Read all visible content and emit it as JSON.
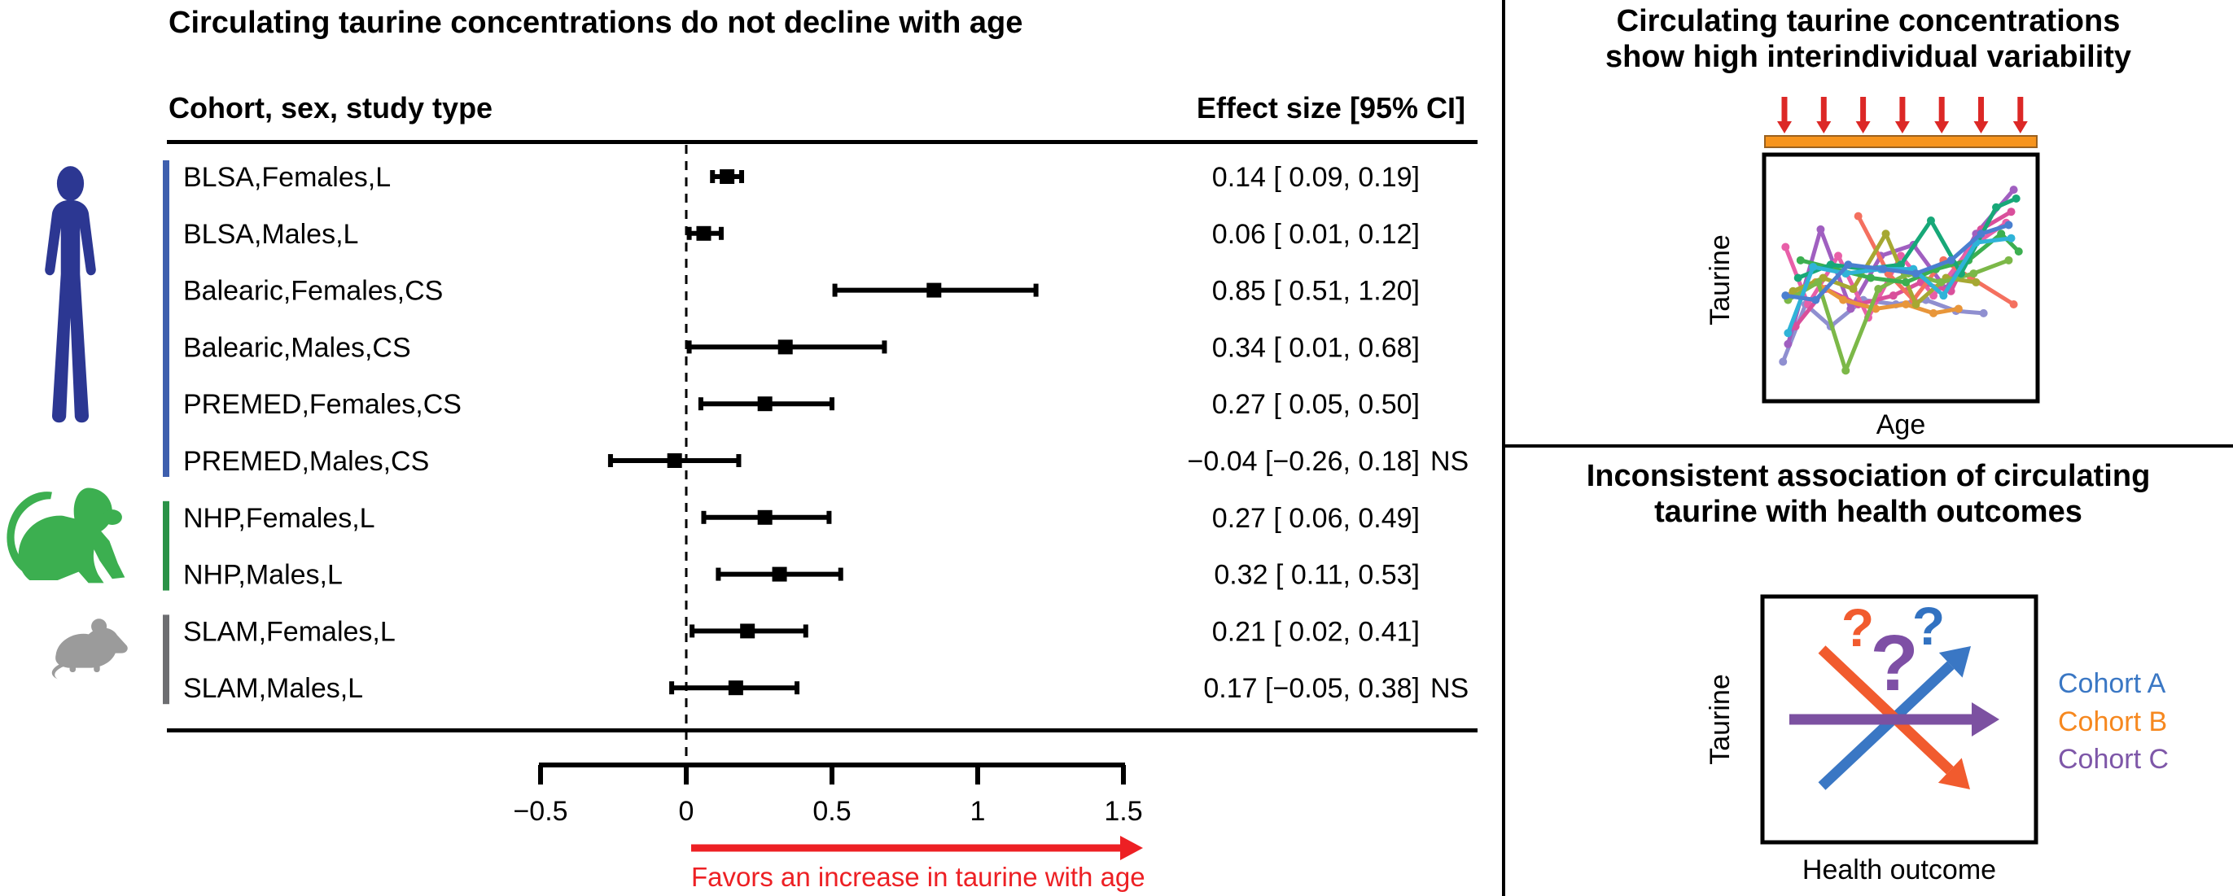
{
  "left_panel": {
    "title": "Circulating taurine concentrations do not decline with age",
    "col_header_left": "Cohort, sex, study type",
    "col_header_right": "Effect size [95% CI]"
  },
  "right_top": {
    "title": "Circulating taurine concentrations\nshow high interindividual variability",
    "xlabel": "Age",
    "ylabel": "Taurine"
  },
  "right_bottom": {
    "title": "Inconsistent association of circulating\ntaurine with health outcomes",
    "xlabel": "Health outcome",
    "ylabel": "Taurine"
  },
  "colors": {
    "red_accent": "#ed2024",
    "orange_bar": "#f7941d",
    "mini_arrow_red": "#dc2826",
    "black": "#000000"
  },
  "chart_data": [
    {
      "type": "forest",
      "title": "Circulating taurine concentrations do not decline with age",
      "columns": [
        "Cohort, sex, study type",
        "Effect size [95% CI]"
      ],
      "xlim": [
        -0.5,
        1.5
      ],
      "x_ticks": [
        -0.5,
        0,
        0.5,
        1,
        1.5
      ],
      "x_tick_labels": [
        "−0.5",
        "0",
        "0.5",
        "1",
        "1.5"
      ],
      "zero_line": 0,
      "note": "Favors an increase in taurine with age",
      "note_color": "#ed2024",
      "rows": [
        {
          "label": "BLSA,Females,L",
          "effect": 0.14,
          "ci_low": 0.09,
          "ci_high": 0.19,
          "text": "0.14 [ 0.09, 0.19]",
          "suffix": ""
        },
        {
          "label": "BLSA,Males,L",
          "effect": 0.06,
          "ci_low": 0.01,
          "ci_high": 0.12,
          "text": "0.06 [ 0.01, 0.12]",
          "suffix": ""
        },
        {
          "label": "Balearic,Females,CS",
          "effect": 0.85,
          "ci_low": 0.51,
          "ci_high": 1.2,
          "text": "0.85 [ 0.51, 1.20]",
          "suffix": ""
        },
        {
          "label": "Balearic,Males,CS",
          "effect": 0.34,
          "ci_low": 0.01,
          "ci_high": 0.68,
          "text": "0.34 [ 0.01, 0.68]",
          "suffix": ""
        },
        {
          "label": "PREMED,Females,CS",
          "effect": 0.27,
          "ci_low": 0.05,
          "ci_high": 0.5,
          "text": "0.27 [ 0.05, 0.50]",
          "suffix": ""
        },
        {
          "label": "PREMED,Males,CS",
          "effect": -0.04,
          "ci_low": -0.26,
          "ci_high": 0.18,
          "text": "−0.04 [−0.26, 0.18]",
          "suffix": "NS"
        },
        {
          "label": "NHP,Females,L",
          "effect": 0.27,
          "ci_low": 0.06,
          "ci_high": 0.49,
          "text": "0.27 [ 0.06, 0.49]",
          "suffix": ""
        },
        {
          "label": "NHP,Males,L",
          "effect": 0.32,
          "ci_low": 0.11,
          "ci_high": 0.53,
          "text": "0.32 [ 0.11, 0.53]",
          "suffix": ""
        },
        {
          "label": "SLAM,Females,L",
          "effect": 0.21,
          "ci_low": 0.02,
          "ci_high": 0.41,
          "text": "0.21 [ 0.02, 0.41]",
          "suffix": ""
        },
        {
          "label": "SLAM,Males,L",
          "effect": 0.17,
          "ci_low": -0.05,
          "ci_high": 0.38,
          "text": "0.17 [−0.05, 0.38]",
          "suffix": "NS"
        }
      ],
      "groups": [
        {
          "species": "human",
          "row_start": 0,
          "row_end": 5,
          "bar_color": "#3e5fae",
          "icon_color": "#2c3792"
        },
        {
          "species": "monkey",
          "row_start": 6,
          "row_end": 7,
          "bar_color": "#2a9247",
          "icon_color": "#2f9e4d"
        },
        {
          "species": "mouse",
          "row_start": 8,
          "row_end": 9,
          "bar_color": "#6d6e71",
          "icon_color": "#9b9b9b"
        }
      ]
    },
    {
      "type": "line",
      "title": "Circulating taurine concentrations show high interindividual variability",
      "xlabel": "Age",
      "ylabel": "Taurine",
      "top_decoration": {
        "arrow_count": 7,
        "arrow_color": "#dc2826",
        "bar_color": "#f7941d",
        "bar_border": "#9a611f"
      },
      "series": [
        {
          "color": "#8f8fd0",
          "points": [
            [
              0.03,
              0.88
            ],
            [
              0.12,
              0.62
            ],
            [
              0.22,
              0.72
            ],
            [
              0.35,
              0.6
            ],
            [
              0.48,
              0.62
            ],
            [
              0.6,
              0.6
            ],
            [
              0.72,
              0.65
            ],
            [
              0.83,
              0.66
            ]
          ]
        },
        {
          "color": "#a05fc0",
          "points": [
            [
              0.05,
              0.8
            ],
            [
              0.18,
              0.28
            ],
            [
              0.3,
              0.64
            ],
            [
              0.42,
              0.4
            ],
            [
              0.55,
              0.35
            ],
            [
              0.68,
              0.55
            ],
            [
              0.8,
              0.3
            ],
            [
              0.95,
              0.1
            ]
          ]
        },
        {
          "color": "#e85fa8",
          "points": [
            [
              0.04,
              0.36
            ],
            [
              0.13,
              0.62
            ],
            [
              0.25,
              0.4
            ],
            [
              0.37,
              0.68
            ],
            [
              0.5,
              0.4
            ],
            [
              0.63,
              0.58
            ],
            [
              0.78,
              0.36
            ],
            [
              0.92,
              0.25
            ]
          ]
        },
        {
          "color": "#d94f9b",
          "points": [
            [
              0.08,
              0.72
            ],
            [
              0.2,
              0.55
            ],
            [
              0.33,
              0.62
            ],
            [
              0.47,
              0.58
            ],
            [
              0.58,
              0.52
            ],
            [
              0.7,
              0.56
            ],
            [
              0.82,
              0.28
            ],
            [
              0.94,
              0.2
            ]
          ]
        },
        {
          "color": "#f4705f",
          "points": [
            [
              0.33,
              0.22
            ],
            [
              0.45,
              0.48
            ],
            [
              0.55,
              0.6
            ],
            [
              0.67,
              0.42
            ],
            [
              0.78,
              0.5
            ],
            [
              0.95,
              0.62
            ]
          ]
        },
        {
          "color": "#e8963a",
          "points": [
            [
              0.06,
              0.58
            ],
            [
              0.16,
              0.52
            ],
            [
              0.27,
              0.6
            ],
            [
              0.4,
              0.64
            ],
            [
              0.52,
              0.62
            ],
            [
              0.63,
              0.66
            ],
            [
              0.73,
              0.64
            ]
          ]
        },
        {
          "color": "#a6a832",
          "points": [
            [
              0.07,
              0.56
            ],
            [
              0.19,
              0.5
            ],
            [
              0.31,
              0.55
            ],
            [
              0.44,
              0.3
            ],
            [
              0.56,
              0.62
            ],
            [
              0.68,
              0.5
            ],
            [
              0.8,
              0.52
            ]
          ]
        },
        {
          "color": "#7cb848",
          "points": [
            [
              0.05,
              0.6
            ],
            [
              0.17,
              0.52
            ],
            [
              0.28,
              0.92
            ],
            [
              0.41,
              0.55
            ],
            [
              0.53,
              0.48
            ],
            [
              0.66,
              0.52
            ],
            [
              0.79,
              0.48
            ],
            [
              0.93,
              0.42
            ]
          ]
        },
        {
          "color": "#3caf50",
          "points": [
            [
              0.1,
              0.42
            ],
            [
              0.24,
              0.46
            ],
            [
              0.38,
              0.5
            ],
            [
              0.52,
              0.52
            ],
            [
              0.64,
              0.46
            ],
            [
              0.77,
              0.42
            ],
            [
              0.9,
              0.3
            ],
            [
              0.97,
              0.38
            ]
          ]
        },
        {
          "color": "#17a878",
          "points": [
            [
              0.09,
              0.5
            ],
            [
              0.22,
              0.44
            ],
            [
              0.36,
              0.46
            ],
            [
              0.5,
              0.44
            ],
            [
              0.62,
              0.24
            ],
            [
              0.74,
              0.48
            ],
            [
              0.88,
              0.18
            ],
            [
              0.96,
              0.14
            ]
          ]
        },
        {
          "color": "#2fb3d8",
          "points": [
            [
              0.05,
              0.75
            ],
            [
              0.15,
              0.45
            ],
            [
              0.28,
              0.48
            ],
            [
              0.42,
              0.46
            ],
            [
              0.55,
              0.46
            ],
            [
              0.67,
              0.58
            ],
            [
              0.8,
              0.34
            ],
            [
              0.94,
              0.32
            ]
          ]
        },
        {
          "color": "#4a7fd0",
          "points": [
            [
              0.04,
              0.58
            ],
            [
              0.16,
              0.6
            ],
            [
              0.29,
              0.44
            ],
            [
              0.43,
              0.46
            ],
            [
              0.56,
              0.48
            ],
            [
              0.7,
              0.42
            ],
            [
              0.82,
              0.3
            ],
            [
              0.93,
              0.26
            ]
          ]
        }
      ]
    },
    {
      "type": "diagram",
      "title": "Inconsistent association of circulating taurine with health outcomes",
      "xlabel": "Health outcome",
      "ylabel": "Taurine",
      "legend": [
        {
          "label": "Cohort A",
          "color": "#3a77c4"
        },
        {
          "label": "Cohort B",
          "color": "#f6881f"
        },
        {
          "label": "Cohort C",
          "color": "#7e57a8"
        }
      ],
      "arrows": [
        {
          "dir": "up",
          "color": "#3a77c4"
        },
        {
          "dir": "down",
          "color": "#f15b2e"
        },
        {
          "dir": "flat",
          "color": "#7c51a1"
        }
      ],
      "question_marks": [
        {
          "glyph": "?",
          "color": "#f15b2e",
          "size": "small"
        },
        {
          "glyph": "?",
          "color": "#7e4fa5",
          "size": "large"
        },
        {
          "glyph": "?",
          "color": "#3272c1",
          "size": "small"
        }
      ]
    }
  ]
}
